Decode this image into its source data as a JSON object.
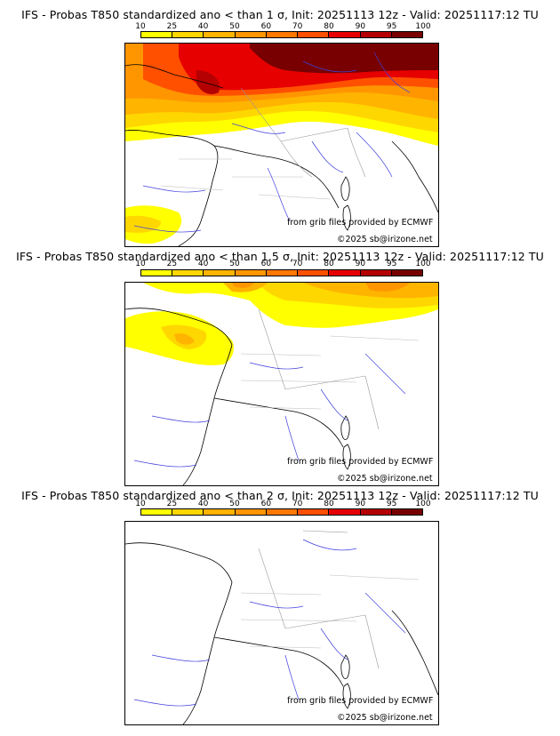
{
  "panels": [
    {
      "title": "IFS - Probas T850  standardized ano < than 1 σ, Init: 20251113 12z - Valid: 20251117:12 TU",
      "credit": "from grib files provided by ECMWF",
      "copyright": "©2025 sb@irizone.net"
    },
    {
      "title": "IFS - Probas T850  standardized ano < than 1.5 σ, Init: 20251113 12z - Valid: 20251117:12 TU",
      "credit": "from grib files provided by ECMWF",
      "copyright": "©2025 sb@irizone.net"
    },
    {
      "title": "IFS - Probas T850  standardized ano < than 2 σ, Init: 20251113 12z - Valid: 20251117:12 TU",
      "credit": "from grib files provided by ECMWF",
      "copyright": "©2025 sb@irizone.net"
    }
  ],
  "colorbar": {
    "ticks": [
      "10",
      "25",
      "40",
      "50",
      "60",
      "70",
      "80",
      "90",
      "95",
      "100"
    ],
    "colors": [
      "#ffff00",
      "#ffd700",
      "#ffb400",
      "#ff9600",
      "#ff7800",
      "#ff5000",
      "#e60000",
      "#b40000",
      "#780000"
    ]
  }
}
